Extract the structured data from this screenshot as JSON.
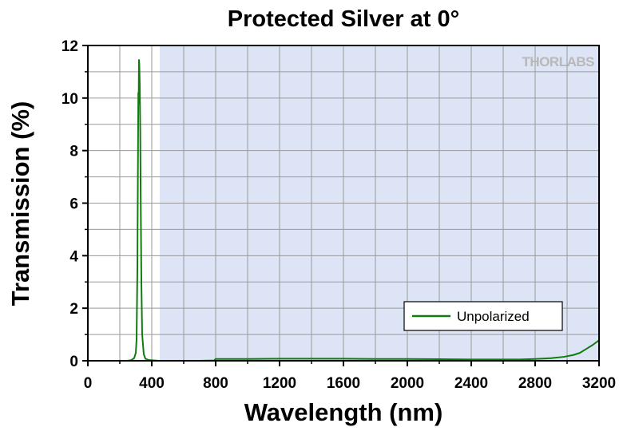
{
  "chart_data": {
    "type": "line",
    "title": "Protected Silver at 0°",
    "xlabel": "Wavelength (nm)",
    "ylabel": "Transmission (%)",
    "xlim": [
      0,
      3200
    ],
    "ylim": [
      0,
      12
    ],
    "x_ticks": [
      0,
      400,
      800,
      1200,
      1600,
      2000,
      2400,
      2800,
      3200
    ],
    "y_ticks": [
      0,
      2,
      4,
      6,
      8,
      10,
      12
    ],
    "grid": true,
    "shaded_region": {
      "x_range": [
        450,
        3200
      ],
      "color": "#dce4f5"
    },
    "legend_position": "bottom-right",
    "watermark": "THORLABS",
    "series": [
      {
        "name": "Unpolarized",
        "color": "#107c10",
        "x": [
          200,
          240,
          270,
          290,
          300,
          305,
          310,
          313,
          316,
          318,
          320,
          322,
          325,
          328,
          330,
          335,
          340,
          350,
          360,
          380,
          400,
          450,
          500,
          600,
          700,
          790,
          800,
          1000,
          1200,
          1400,
          1600,
          1800,
          2000,
          2200,
          2400,
          2600,
          2700,
          2800,
          2900,
          2980,
          3040,
          3080,
          3120,
          3160,
          3200
        ],
        "y": [
          0,
          0,
          0.02,
          0.1,
          0.3,
          0.8,
          3.5,
          7.0,
          10.2,
          9.8,
          11.45,
          11.3,
          10.5,
          8.8,
          6.8,
          3.0,
          1.0,
          0.25,
          0.08,
          0.03,
          0.02,
          0.0,
          0.0,
          0.0,
          0.0,
          0.01,
          0.07,
          0.07,
          0.08,
          0.08,
          0.08,
          0.07,
          0.07,
          0.06,
          0.05,
          0.05,
          0.05,
          0.07,
          0.1,
          0.15,
          0.22,
          0.3,
          0.45,
          0.6,
          0.78
        ]
      }
    ]
  }
}
